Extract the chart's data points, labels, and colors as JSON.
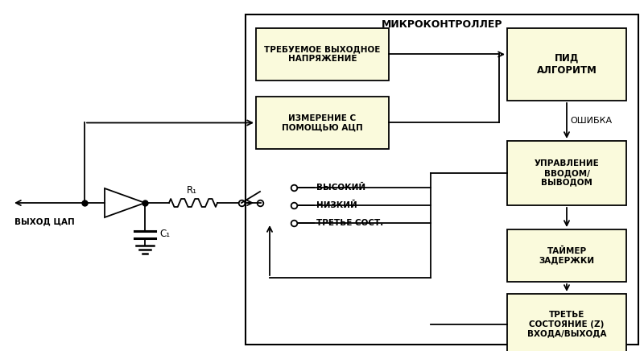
{
  "fig_width": 8.0,
  "fig_height": 4.36,
  "bg_color": "#ffffff",
  "box_fill_yellow": "#fafadc",
  "box_fill_white": "#ffffff",
  "box_edge_color": "#000000",
  "title_microcontroller": "МИКРОКОНТРОЛЛЕР",
  "box_required_voltage": "ТРЕБУЕМОЕ ВЫХОДНОЕ\nНАПРЯЖЕНИЕ",
  "box_measurement": "ИЗМЕРЕНИЕ С\nПОМОЩЬЮ АЦП",
  "box_pid": "ПИД\nАЛГОРИТМ",
  "box_io_control": "УПРАВЛЕНИЕ\nВВОДОМ/\nВЫВОДОМ",
  "box_timer": "ТАЙМЕР\nЗАДЕРЖКИ",
  "box_tristate": "ТРЕТЬЕ\nСОСТОЯНИЕ (Z)\nВХОДА/ВЫХОДА",
  "label_error": "ОШИБКА",
  "label_dac_output": "ВЫХОД ЦАП",
  "label_r1": "R₁",
  "label_c1": "C₁",
  "label_high": "ВЫСОКИЙ",
  "label_low": "НИЗКИЙ",
  "label_tristate_short": "ТРЕТЬЕ СОСТ."
}
